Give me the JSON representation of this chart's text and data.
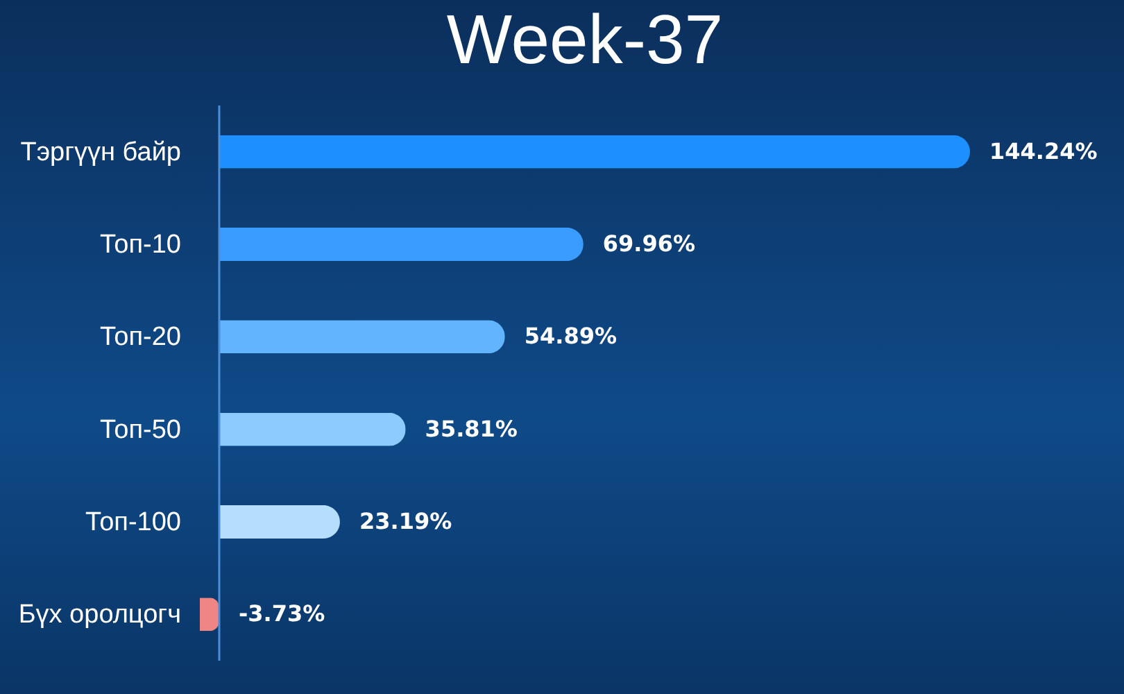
{
  "chart_data": {
    "type": "bar",
    "orientation": "horizontal",
    "title": "Week-37",
    "categories": [
      "Тэргүүн байр",
      "Топ-10",
      "Топ-20",
      "Топ-50",
      "Топ-100",
      "Бүх оролцогч"
    ],
    "values": [
      144.24,
      69.96,
      54.89,
      35.81,
      23.19,
      -3.73
    ],
    "colors": [
      "#1e8fff",
      "#3a9cff",
      "#63b4ff",
      "#8dcbff",
      "#b5defd",
      "#f08585"
    ],
    "value_labels": [
      "144.24%",
      "69.96%",
      "54.89%",
      "35.81%",
      "23.19%",
      "-3.73%"
    ]
  }
}
